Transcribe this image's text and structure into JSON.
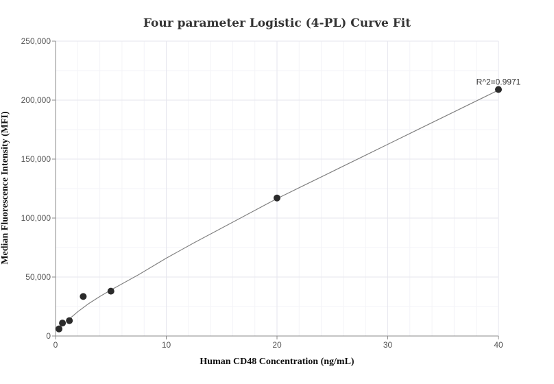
{
  "chart_data": {
    "type": "scatter",
    "title": "Four parameter Logistic (4-PL) Curve Fit",
    "xlabel": "Human CD48 Concentration (ng/mL)",
    "ylabel": "Median Fluorescence Intensity (MFI)",
    "xlim": [
      0,
      40
    ],
    "ylim": [
      0,
      250000
    ],
    "xticks": [
      0,
      10,
      20,
      30,
      40
    ],
    "xtick_labels": [
      "0",
      "10",
      "20",
      "30",
      "40"
    ],
    "yticks": [
      0,
      50000,
      100000,
      150000,
      200000,
      250000
    ],
    "ytick_labels": [
      "0",
      "50,000",
      "100,000",
      "150,000",
      "200,000",
      "250,000"
    ],
    "grid": true,
    "series": [
      {
        "values_x": [
          0.3125,
          0.625,
          1.25,
          2.5,
          5,
          20,
          40
        ],
        "values_y": [
          6000,
          11000,
          13000,
          33500,
          38000,
          117000,
          209000
        ],
        "color": "#2b2b2b"
      }
    ],
    "fit_curve": {
      "model": "4PL",
      "x": [
        1,
        2,
        3,
        4,
        5,
        7.5,
        10,
        12.5,
        15,
        17.5,
        20,
        22.5,
        25,
        27.5,
        30,
        32.5,
        35,
        37.5,
        40
      ],
      "y": [
        12500,
        20500,
        27500,
        33500,
        39000,
        52000,
        66000,
        79000,
        91500,
        104000,
        116500,
        128000,
        139500,
        151000,
        162500,
        174000,
        185500,
        197000,
        208500
      ],
      "color": "#808080"
    },
    "annotations": [
      {
        "text": "R^2=0.9971",
        "x": 40,
        "y": 209000
      }
    ]
  }
}
